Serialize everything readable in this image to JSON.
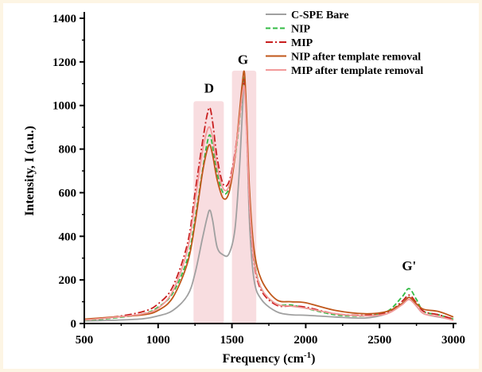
{
  "chart_data": {
    "type": "line",
    "xlabel": "Frequency (cm",
    "xlabel_sup": "-1",
    "xlabel_end": ")",
    "ylabel": "Intensity, I (a.u.)",
    "xlim": [
      500,
      3000
    ],
    "ylim": [
      0,
      1400
    ],
    "xticks": [
      "500",
      "1000",
      "1500",
      "2000",
      "2500",
      "3000"
    ],
    "yticks": [
      "0",
      "200",
      "400",
      "600",
      "800",
      "1000",
      "1200",
      "1400"
    ],
    "legend_position": "top-right",
    "annotations": [
      {
        "text": "D",
        "x": 1345,
        "y": 1060
      },
      {
        "text": "G",
        "x": 1575,
        "y": 1190
      },
      {
        "text": "G'",
        "x": 2700,
        "y": 245
      }
    ],
    "highlight_bands": [
      {
        "x0": 1240,
        "x1": 1445,
        "y0": 0,
        "y1": 1020
      },
      {
        "x0": 1500,
        "x1": 1665,
        "y0": 0,
        "y1": 1160
      }
    ],
    "series": [
      {
        "name": "C-SPE Bare",
        "color": "#a0a0a0",
        "style": "solid",
        "x": [
          500,
          700,
          900,
          1000,
          1100,
          1200,
          1250,
          1300,
          1330,
          1350,
          1370,
          1400,
          1440,
          1480,
          1520,
          1550,
          1570,
          1585,
          1600,
          1620,
          1650,
          1700,
          1800,
          1900,
          2000,
          2200,
          2400,
          2550,
          2650,
          2700,
          2750,
          2800,
          2900,
          3000
        ],
        "y": [
          12,
          15,
          22,
          35,
          60,
          130,
          230,
          390,
          480,
          520,
          470,
          350,
          315,
          320,
          430,
          700,
          960,
          1130,
          900,
          450,
          200,
          110,
          55,
          40,
          38,
          30,
          25,
          45,
          90,
          120,
          80,
          45,
          30,
          18
        ]
      },
      {
        "name": "NIP",
        "color": "#33bb44",
        "style": "dashed",
        "x": [
          500,
          700,
          900,
          1000,
          1100,
          1200,
          1250,
          1300,
          1330,
          1350,
          1370,
          1400,
          1440,
          1480,
          1520,
          1550,
          1570,
          1585,
          1600,
          1620,
          1650,
          1700,
          1800,
          1900,
          2000,
          2200,
          2400,
          2550,
          2650,
          2700,
          2750,
          2800,
          2900,
          3000
        ],
        "y": [
          15,
          25,
          45,
          75,
          140,
          300,
          480,
          700,
          820,
          865,
          810,
          690,
          600,
          620,
          760,
          920,
          1050,
          1120,
          900,
          560,
          300,
          160,
          90,
          85,
          70,
          40,
          35,
          55,
          120,
          160,
          110,
          55,
          40,
          20
        ]
      },
      {
        "name": "MIP",
        "color": "#c81e1e",
        "style": "dashdot",
        "x": [
          500,
          700,
          900,
          1000,
          1100,
          1200,
          1250,
          1300,
          1330,
          1350,
          1370,
          1400,
          1440,
          1480,
          1520,
          1550,
          1570,
          1585,
          1600,
          1620,
          1650,
          1700,
          1800,
          1900,
          2000,
          2200,
          2400,
          2550,
          2650,
          2700,
          2750,
          2800,
          2900,
          3000
        ],
        "y": [
          18,
          30,
          55,
          90,
          170,
          370,
          600,
          830,
          950,
          990,
          920,
          760,
          640,
          650,
          780,
          940,
          1060,
          1110,
          880,
          540,
          280,
          150,
          85,
          80,
          75,
          45,
          38,
          50,
          100,
          130,
          95,
          55,
          40,
          20
        ]
      },
      {
        "name": "NIP after template removal",
        "color": "#c0571a",
        "style": "solid",
        "x": [
          500,
          700,
          900,
          1000,
          1100,
          1200,
          1250,
          1300,
          1330,
          1350,
          1370,
          1400,
          1440,
          1480,
          1520,
          1550,
          1570,
          1585,
          1600,
          1620,
          1650,
          1700,
          1800,
          1900,
          2000,
          2200,
          2400,
          2550,
          2650,
          2700,
          2750,
          2800,
          2900,
          3000
        ],
        "y": [
          20,
          30,
          40,
          60,
          120,
          280,
          460,
          690,
          790,
          820,
          770,
          660,
          575,
          600,
          760,
          960,
          1100,
          1150,
          940,
          600,
          340,
          200,
          110,
          100,
          95,
          60,
          45,
          55,
          90,
          120,
          90,
          65,
          55,
          30
        ]
      },
      {
        "name": "MIP after template removal",
        "color": "#f29a9a",
        "style": "solid",
        "x": [
          500,
          700,
          900,
          1000,
          1100,
          1200,
          1250,
          1300,
          1330,
          1350,
          1370,
          1400,
          1440,
          1480,
          1520,
          1550,
          1570,
          1585,
          1600,
          1620,
          1650,
          1700,
          1800,
          1900,
          2000,
          2200,
          2400,
          2550,
          2650,
          2700,
          2750,
          2800,
          2900,
          3000
        ],
        "y": [
          16,
          28,
          45,
          70,
          150,
          340,
          560,
          790,
          880,
          900,
          850,
          720,
          620,
          630,
          770,
          930,
          1050,
          1080,
          870,
          540,
          290,
          160,
          90,
          80,
          70,
          45,
          35,
          45,
          85,
          110,
          80,
          45,
          32,
          15
        ]
      }
    ]
  }
}
